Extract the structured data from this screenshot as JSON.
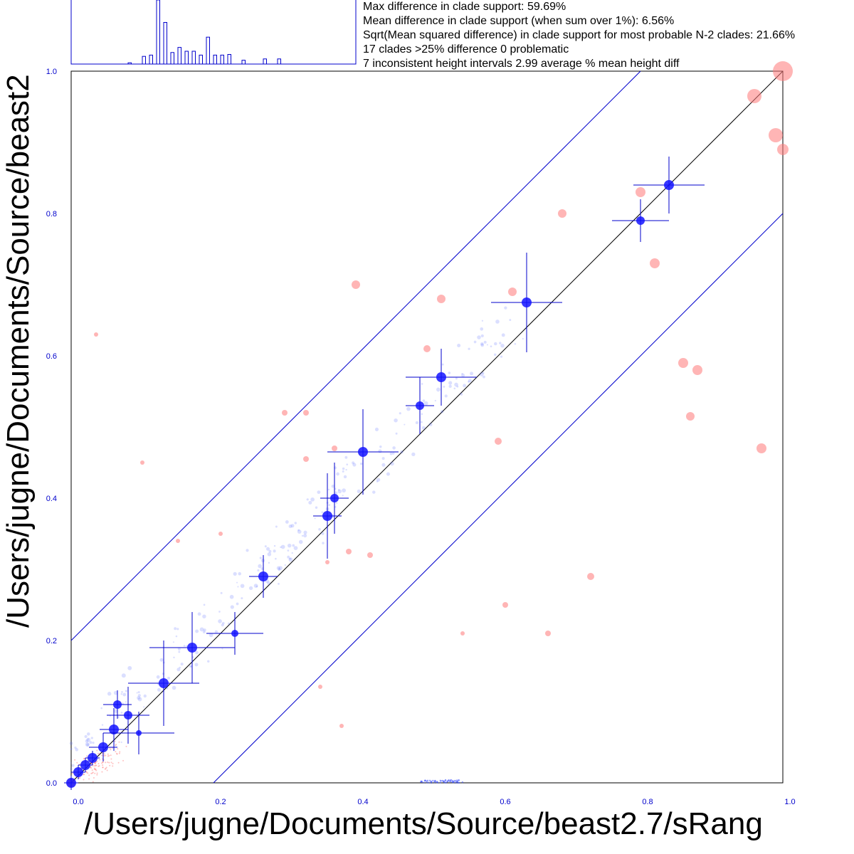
{
  "stats": {
    "lines": [
      "Max difference in clade support: 59.69%",
      "Mean difference in clade support (when sum over 1%): 6.56%",
      "Sqrt(Mean squared difference) in clade support for most probable N-2 clades: 21.66%",
      "17 clades >25% difference 0 problematic",
      "7 inconsistent height intervals 2.99 average % mean height diff"
    ]
  },
  "chart_data": {
    "type": "scatter",
    "title": "",
    "xlabel": "/Users/jugne/Documents/Source/beast2.7/sRang",
    "ylabel": "/Users/jugne/Documents/Source/beast2",
    "xlim": [
      0,
      1
    ],
    "ylim": [
      0,
      1
    ],
    "x_ticks": [
      "0.0",
      "0.2",
      "0.4",
      "0.6",
      "0.8",
      "1.0"
    ],
    "y_ticks": [
      "0.0",
      "0.2",
      "0.4",
      "0.6",
      "0.8",
      "1.0"
    ],
    "reference_lines": [
      {
        "name": "identity",
        "offset": 0.0
      },
      {
        "name": "upper",
        "offset": 0.2
      },
      {
        "name": "lower",
        "offset": -0.2
      }
    ],
    "histogram": {
      "bin_width": 0.01,
      "bins": [
        {
          "x": 0.16,
          "h": 0.02
        },
        {
          "x": 0.2,
          "h": 0.12
        },
        {
          "x": 0.22,
          "h": 0.14
        },
        {
          "x": 0.24,
          "h": 1.0
        },
        {
          "x": 0.26,
          "h": 0.65
        },
        {
          "x": 0.28,
          "h": 0.18
        },
        {
          "x": 0.3,
          "h": 0.26
        },
        {
          "x": 0.32,
          "h": 0.2
        },
        {
          "x": 0.34,
          "h": 0.2
        },
        {
          "x": 0.36,
          "h": 0.14
        },
        {
          "x": 0.38,
          "h": 0.42
        },
        {
          "x": 0.4,
          "h": 0.14
        },
        {
          "x": 0.42,
          "h": 0.14
        },
        {
          "x": 0.44,
          "h": 0.15
        },
        {
          "x": 0.48,
          "h": 0.06
        },
        {
          "x": 0.54,
          "h": 0.08
        },
        {
          "x": 0.58,
          "h": 0.08
        }
      ]
    },
    "series": [
      {
        "type": "agreeing",
        "color": "#0000ff",
        "points": [
          {
            "x": 0.0,
            "y": 0.0,
            "r": 7,
            "ex": 0.01,
            "ey": 0.01
          },
          {
            "x": 0.01,
            "y": 0.015,
            "r": 7,
            "ex": 0.01,
            "ey": 0.01
          },
          {
            "x": 0.02,
            "y": 0.025,
            "r": 7,
            "ex": 0.01,
            "ey": 0.01
          },
          {
            "x": 0.03,
            "y": 0.035,
            "r": 7,
            "ex": 0.01,
            "ey": 0.01
          },
          {
            "x": 0.045,
            "y": 0.05,
            "r": 7,
            "ex": 0.02,
            "ey": 0.02
          },
          {
            "x": 0.06,
            "y": 0.075,
            "r": 7,
            "ex": 0.02,
            "ey": 0.03
          },
          {
            "x": 0.065,
            "y": 0.11,
            "r": 6,
            "ex": 0.02,
            "ey": 0.02
          },
          {
            "x": 0.08,
            "y": 0.095,
            "r": 6,
            "ex": 0.03,
            "ey": 0.04
          },
          {
            "x": 0.095,
            "y": 0.07,
            "r": 4,
            "ex": 0.05,
            "ey": 0.03
          },
          {
            "x": 0.13,
            "y": 0.14,
            "r": 7,
            "ex": 0.05,
            "ey": 0.06
          },
          {
            "x": 0.17,
            "y": 0.19,
            "r": 7,
            "ex": 0.06,
            "ey": 0.05
          },
          {
            "x": 0.23,
            "y": 0.21,
            "r": 5,
            "ex": 0.04,
            "ey": 0.03
          },
          {
            "x": 0.27,
            "y": 0.29,
            "r": 7,
            "ex": 0.02,
            "ey": 0.03
          },
          {
            "x": 0.36,
            "y": 0.375,
            "r": 7,
            "ex": 0.02,
            "ey": 0.06
          },
          {
            "x": 0.37,
            "y": 0.4,
            "r": 6,
            "ex": 0.02,
            "ey": 0.05
          },
          {
            "x": 0.41,
            "y": 0.465,
            "r": 7,
            "ex": 0.05,
            "ey": 0.06
          },
          {
            "x": 0.49,
            "y": 0.53,
            "r": 6,
            "ex": 0.02,
            "ey": 0.04
          },
          {
            "x": 0.52,
            "y": 0.57,
            "r": 7,
            "ex": 0.05,
            "ey": 0.04
          },
          {
            "x": 0.64,
            "y": 0.675,
            "r": 7,
            "ex": 0.05,
            "ey": 0.07
          },
          {
            "x": 0.8,
            "y": 0.79,
            "r": 6,
            "ex": 0.04,
            "ey": 0.03
          },
          {
            "x": 0.84,
            "y": 0.84,
            "r": 7,
            "ex": 0.05,
            "ey": 0.04
          }
        ]
      },
      {
        "type": "disagreeing",
        "color": "#ff9999",
        "points": [
          {
            "x": 0.035,
            "y": 0.63,
            "r": 3
          },
          {
            "x": 0.1,
            "y": 0.45,
            "r": 3
          },
          {
            "x": 0.3,
            "y": 0.52,
            "r": 4
          },
          {
            "x": 0.33,
            "y": 0.52,
            "r": 4
          },
          {
            "x": 0.33,
            "y": 0.455,
            "r": 4
          },
          {
            "x": 0.4,
            "y": 0.7,
            "r": 6
          },
          {
            "x": 0.37,
            "y": 0.47,
            "r": 4
          },
          {
            "x": 0.52,
            "y": 0.68,
            "r": 6
          },
          {
            "x": 0.5,
            "y": 0.61,
            "r": 5
          },
          {
            "x": 0.6,
            "y": 0.48,
            "r": 5
          },
          {
            "x": 0.62,
            "y": 0.69,
            "r": 6
          },
          {
            "x": 0.69,
            "y": 0.8,
            "r": 6
          },
          {
            "x": 0.8,
            "y": 0.83,
            "r": 7
          },
          {
            "x": 0.82,
            "y": 0.73,
            "r": 7
          },
          {
            "x": 0.86,
            "y": 0.59,
            "r": 7
          },
          {
            "x": 0.87,
            "y": 0.515,
            "r": 6
          },
          {
            "x": 0.88,
            "y": 0.58,
            "r": 7
          },
          {
            "x": 0.97,
            "y": 0.47,
            "r": 7
          },
          {
            "x": 0.73,
            "y": 0.29,
            "r": 5
          },
          {
            "x": 0.61,
            "y": 0.25,
            "r": 4
          },
          {
            "x": 0.67,
            "y": 0.21,
            "r": 4
          },
          {
            "x": 0.55,
            "y": 0.21,
            "r": 3
          },
          {
            "x": 0.42,
            "y": 0.32,
            "r": 4
          },
          {
            "x": 0.39,
            "y": 0.325,
            "r": 4
          },
          {
            "x": 0.36,
            "y": 0.31,
            "r": 3
          },
          {
            "x": 0.35,
            "y": 0.135,
            "r": 3
          },
          {
            "x": 0.38,
            "y": 0.08,
            "r": 3
          },
          {
            "x": 0.21,
            "y": 0.35,
            "r": 3
          },
          {
            "x": 0.15,
            "y": 0.34,
            "r": 3
          },
          {
            "x": 0.96,
            "y": 0.965,
            "r": 10
          },
          {
            "x": 0.99,
            "y": 0.91,
            "r": 10
          },
          {
            "x": 1.0,
            "y": 0.89,
            "r": 8
          },
          {
            "x": 1.0,
            "y": 1.0,
            "r": 14
          },
          {
            "x": 0.0,
            "y": 0.0,
            "r": 6
          }
        ]
      }
    ]
  }
}
